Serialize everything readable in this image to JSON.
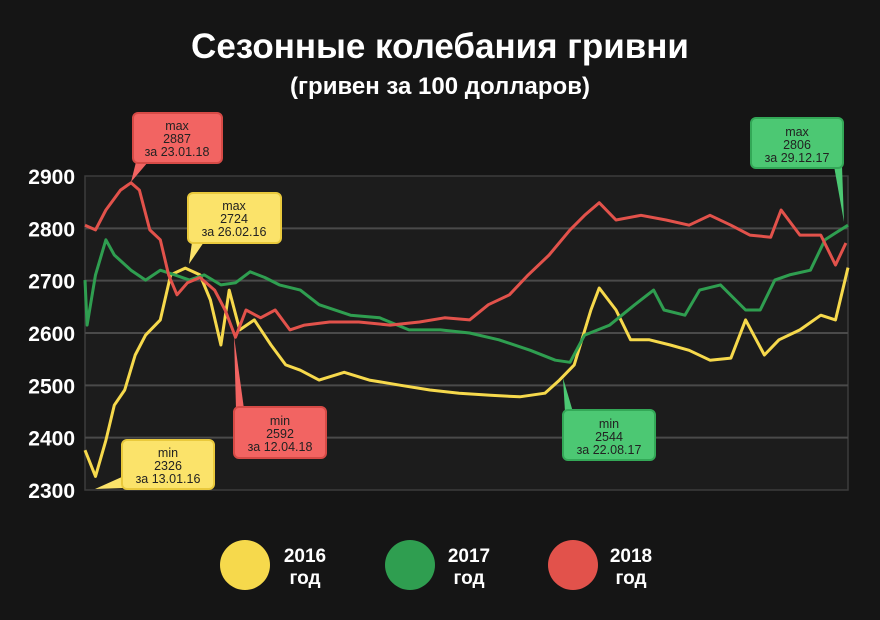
{
  "chart_data": {
    "type": "line",
    "title": "Сезонные колебания гривни",
    "subtitle": "(гривен за 100 долларов)",
    "xlabel": "",
    "ylabel": "",
    "ylim": [
      2300,
      2900
    ],
    "yticks": [
      "2900",
      "2800",
      "2700",
      "2600",
      "2500",
      "2400",
      "2300"
    ],
    "grid": true,
    "legend_position": "bottom",
    "series": [
      {
        "name": "2016 год",
        "legend_year": "2016",
        "legend_unit": "год",
        "color": "#f6d94c",
        "x": [
          0,
          5,
          10,
          14,
          19,
          24,
          29,
          36,
          41,
          48,
          55,
          60,
          65,
          69,
          74,
          81,
          89,
          96,
          103,
          112,
          124,
          136,
          151,
          165,
          179,
          194,
          208,
          220,
          227,
          234,
          242,
          246,
          254,
          261,
          270,
          280,
          289,
          299,
          309,
          316,
          325,
          332,
          342,
          352,
          359,
          365
        ],
        "values": [
          2376,
          2326,
          2395,
          2462,
          2491,
          2558,
          2596,
          2625,
          2711,
          2724,
          2711,
          2663,
          2577,
          2682,
          2606,
          2625,
          2577,
          2539,
          2529,
          2510,
          2525,
          2510,
          2500,
          2491,
          2485,
          2481,
          2478,
          2485,
          2510,
          2539,
          2644,
          2686,
          2644,
          2587,
          2587,
          2577,
          2567,
          2548,
          2552,
          2625,
          2558,
          2587,
          2606,
          2634,
          2625,
          2725
        ]
      },
      {
        "name": "2017 год",
        "legend_year": "2017",
        "legend_unit": "год",
        "color": "#2f9e50",
        "x": [
          0,
          1,
          5,
          10,
          14,
          22,
          29,
          36,
          43,
          50,
          57,
          65,
          72,
          79,
          86,
          93,
          103,
          112,
          127,
          141,
          155,
          170,
          184,
          198,
          213,
          225,
          232,
          239,
          251,
          263,
          272,
          277,
          287,
          294,
          304,
          316,
          323,
          330,
          337,
          347,
          354,
          359,
          365
        ],
        "values": [
          2701,
          2615,
          2711,
          2778,
          2749,
          2720,
          2701,
          2720,
          2711,
          2701,
          2711,
          2692,
          2696,
          2717,
          2706,
          2692,
          2682,
          2654,
          2634,
          2629,
          2606,
          2606,
          2600,
          2587,
          2567,
          2548,
          2544,
          2596,
          2615,
          2654,
          2682,
          2644,
          2634,
          2682,
          2692,
          2644,
          2644,
          2701,
          2711,
          2720,
          2778,
          2791,
          2806
        ]
      },
      {
        "name": "2018 год",
        "legend_year": "2018",
        "legend_unit": "год",
        "color": "#e2524b",
        "x": [
          0,
          5,
          10,
          17,
          22,
          26,
          31,
          36,
          40,
          44,
          49,
          55,
          62,
          67,
          72,
          77,
          84,
          91,
          98,
          105,
          117,
          131,
          146,
          160,
          172,
          184,
          193,
          203,
          212,
          222,
          232,
          239,
          246,
          254,
          266,
          278,
          289,
          299,
          309,
          318,
          328,
          333,
          342,
          352,
          359,
          364
        ],
        "values": [
          2806,
          2797,
          2835,
          2873,
          2887,
          2873,
          2797,
          2778,
          2711,
          2673,
          2696,
          2706,
          2682,
          2644,
          2592,
          2644,
          2629,
          2644,
          2606,
          2615,
          2621,
          2621,
          2615,
          2621,
          2629,
          2625,
          2654,
          2673,
          2711,
          2749,
          2797,
          2825,
          2849,
          2816,
          2825,
          2816,
          2806,
          2825,
          2806,
          2787,
          2783,
          2835,
          2787,
          2787,
          2730,
          2772
        ]
      }
    ],
    "annotations": [
      {
        "series": "2018",
        "label": "max",
        "value": "2887",
        "date": "за 23.01.18"
      },
      {
        "series": "2016",
        "label": "max",
        "value": "2724",
        "date": "за 26.02.16"
      },
      {
        "series": "2016",
        "label": "min",
        "value": "2326",
        "date": "за 13.01.16"
      },
      {
        "series": "2018",
        "label": "min",
        "value": "2592",
        "date": "за 12.04.18"
      },
      {
        "series": "2017",
        "label": "min",
        "value": "2544",
        "date": "за 22.08.17"
      },
      {
        "series": "2017",
        "label": "max",
        "value": "2806",
        "date": "за 29.12.17"
      }
    ]
  }
}
